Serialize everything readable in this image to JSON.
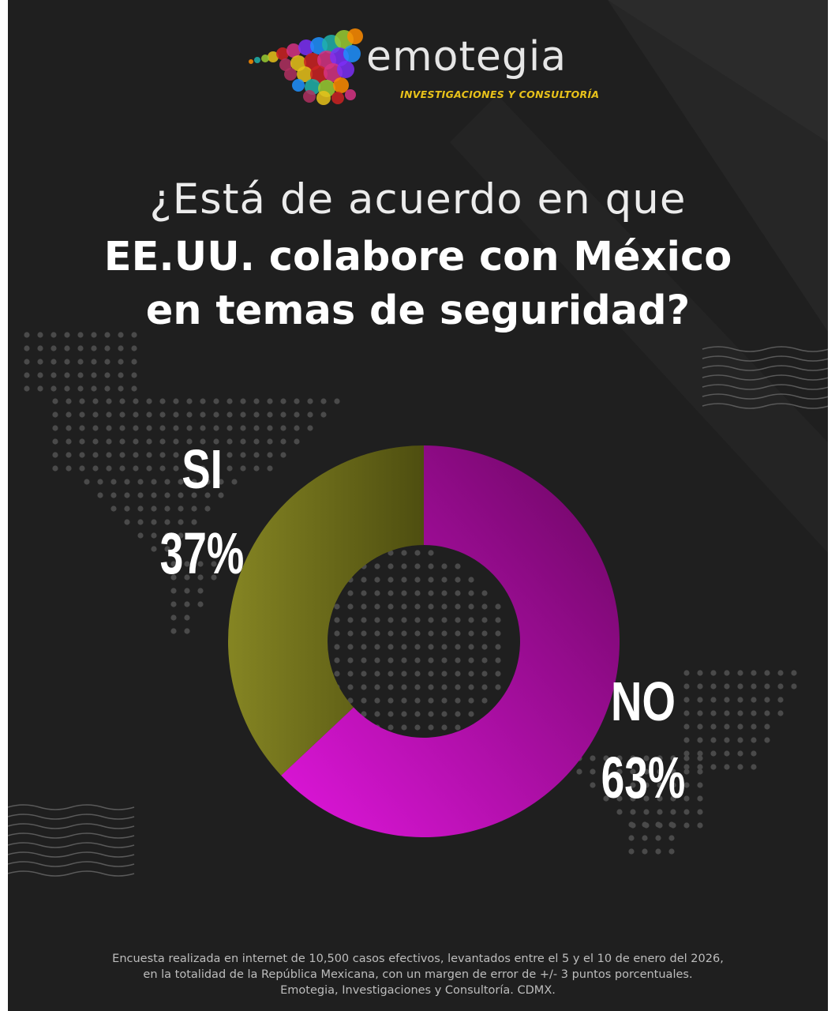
{
  "brand": {
    "name": "emotegia",
    "tagline": "INVESTIGACIONES Y CONSULTORÍA",
    "logo_icon": "map-dots-logo-icon"
  },
  "question": {
    "line1": "¿Está de acuerdo en que",
    "line2": "EE.UU. colabore con México",
    "line3": "en temas de seguridad?"
  },
  "chart_data": {
    "type": "pie",
    "variant": "donut",
    "title": "¿Está de acuerdo en que EE.UU. colabore con México en temas de seguridad?",
    "categories": [
      "NO",
      "SI"
    ],
    "values": [
      63,
      37
    ],
    "labels": [
      {
        "name": "NO",
        "value_label": "63%"
      },
      {
        "name": "SI",
        "value_label": "37%"
      }
    ],
    "colors": [
      "#c40fbf",
      "#6e6e1c"
    ]
  },
  "footer": {
    "line1": "Encuesta realizada en internet de 10,500 casos efectivos, levantados entre el 5 y el 10 de enero del 2026,",
    "line2": "en la totalidad de la República Mexicana, con un margen de error de +/- 3 puntos porcentuales.",
    "line3": "Emotegia, Investigaciones y Consultoría. CDMX."
  },
  "colors": {
    "background": "#1f1f1f",
    "accent_yellow": "#e8c21a",
    "no_magenta": "#c40fbf",
    "si_olive": "#6e6e1c"
  }
}
